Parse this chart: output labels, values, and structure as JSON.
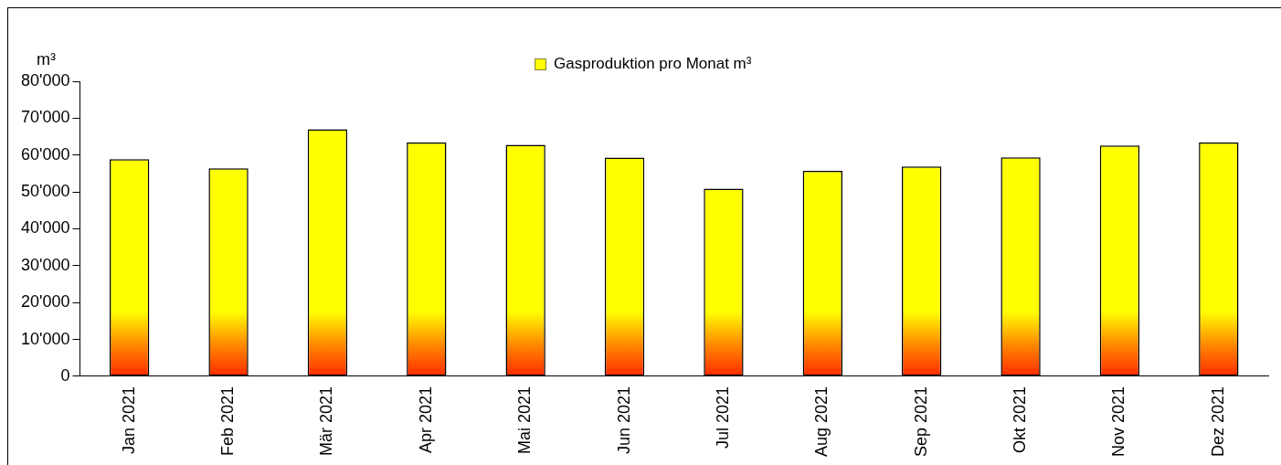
{
  "chart_data": {
    "type": "bar",
    "ylabel": "m³",
    "categories": [
      "Jan 2021",
      "Feb 2021",
      "Mär 2021",
      "Apr 2021",
      "Mai 2021",
      "Jun 2021",
      "Jul 2021",
      "Aug 2021",
      "Sep 2021",
      "Okt 2021",
      "Nov 2021",
      "Dez 2021"
    ],
    "series": [
      {
        "name": "Gasproduktion pro Monat m³",
        "color": "#ffff00",
        "values": [
          58900,
          56400,
          67000,
          63400,
          62800,
          59300,
          50900,
          55700,
          56900,
          59400,
          62600,
          63400
        ]
      }
    ],
    "ylim": [
      0,
      80000
    ],
    "yticks": [
      0,
      {
        "value": 10000,
        "label": "10'000"
      },
      {
        "value": 20000,
        "label": "20'000"
      },
      {
        "value": 30000,
        "label": "30'000"
      },
      {
        "value": 40000,
        "label": "40'000"
      },
      {
        "value": 50000,
        "label": "50'000"
      },
      {
        "value": 60000,
        "label": "60'000"
      },
      {
        "value": 70000,
        "label": "70'000"
      },
      {
        "value": 80000,
        "label": "80'000"
      }
    ],
    "grid": false,
    "legend": "top"
  }
}
